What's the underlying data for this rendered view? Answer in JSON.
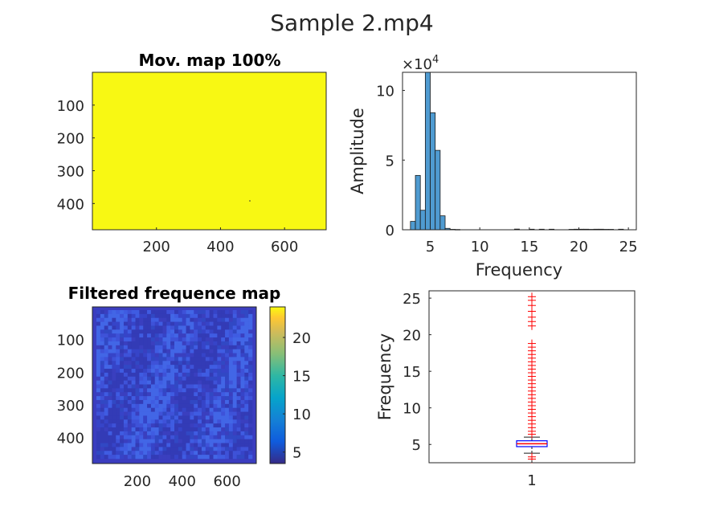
{
  "figure": {
    "title": "Sample 2.mp4"
  },
  "chart_data": [
    {
      "type": "heatmap",
      "title": "Mov. map 100%",
      "xlim": [
        0,
        730
      ],
      "ylim": [
        0,
        480
      ],
      "xticks": [
        "200",
        "400",
        "600"
      ],
      "xtick_values": [
        200,
        400,
        600
      ],
      "yticks": [
        "100",
        "200",
        "300",
        "400"
      ],
      "ytick_values": [
        100,
        200,
        300,
        400
      ],
      "fill_color": "#f8f813",
      "grid": false
    },
    {
      "type": "bar",
      "title": "",
      "xlabel": "Frequency",
      "ylabel": "Amplitude",
      "y_exponent": "×10",
      "y_exponent_power": "4",
      "xlim": [
        2.2,
        25.8
      ],
      "ylim": [
        0,
        11.3
      ],
      "xticks": [
        "5",
        "10",
        "15",
        "20",
        "25"
      ],
      "xtick_values": [
        5,
        10,
        15,
        20,
        25
      ],
      "yticks": [
        "0",
        "5",
        "10"
      ],
      "ytick_values": [
        0,
        5,
        10
      ],
      "bin_width": 0.5,
      "bin_centers": [
        3.25,
        3.75,
        4.25,
        4.75,
        5.25,
        5.75,
        6.25,
        6.75,
        7.25,
        7.75,
        13.75,
        15.25,
        16.25,
        17.25,
        19.25,
        19.75,
        20.25,
        20.75,
        21.25,
        21.75,
        22.25,
        22.75,
        23.25,
        24.25
      ],
      "values": [
        0.6,
        3.9,
        1.4,
        11.3,
        8.4,
        5.7,
        1.0,
        0.1,
        0.03,
        0.02,
        0.05,
        0.04,
        0.04,
        0.04,
        0.03,
        0.04,
        0.04,
        0.04,
        0.03,
        0.04,
        0.04,
        0.03,
        0.03,
        0.04
      ],
      "bar_color": "#4f9bd1",
      "grid": false
    },
    {
      "type": "heatmap",
      "title": "Filtered frequence map",
      "xlim": [
        0,
        730
      ],
      "ylim": [
        0,
        480
      ],
      "xticks": [
        "200",
        "400",
        "600"
      ],
      "xtick_values": [
        200,
        400,
        600
      ],
      "yticks": [
        "100",
        "200",
        "300",
        "400"
      ],
      "ytick_values": [
        100,
        200,
        300,
        400
      ],
      "colorbar": {
        "range": [
          3.5,
          24
        ],
        "ticks": [
          "5",
          "10",
          "15",
          "20"
        ],
        "tick_values": [
          5,
          10,
          15,
          20
        ]
      },
      "grid": false
    },
    {
      "type": "box",
      "title": "",
      "ylabel": "Frequency",
      "xticks": [
        "1"
      ],
      "ylim": [
        2.5,
        26
      ],
      "yticks": [
        "5",
        "10",
        "15",
        "20",
        "25"
      ],
      "ytick_values": [
        5,
        10,
        15,
        20,
        25
      ],
      "box": {
        "q1": 4.7,
        "median": 5.1,
        "q3": 5.5,
        "whisker_low": 3.8,
        "whisker_high": 6.0
      },
      "outliers": [
        3.3,
        3.0,
        6.4,
        6.8,
        7.3,
        7.8,
        8.3,
        8.8,
        9.3,
        9.8,
        10.3,
        10.8,
        11.3,
        11.8,
        12.3,
        12.8,
        13.3,
        13.8,
        14.3,
        14.8,
        15.3,
        15.8,
        16.3,
        16.8,
        17.3,
        17.8,
        18.3,
        18.8,
        21.2,
        21.8,
        22.4,
        23.2,
        24.0,
        24.7,
        25.2
      ],
      "box_color": "#0000ff",
      "median_color": "#ff0000",
      "outlier_color": "#ff0000",
      "grid": false
    }
  ]
}
